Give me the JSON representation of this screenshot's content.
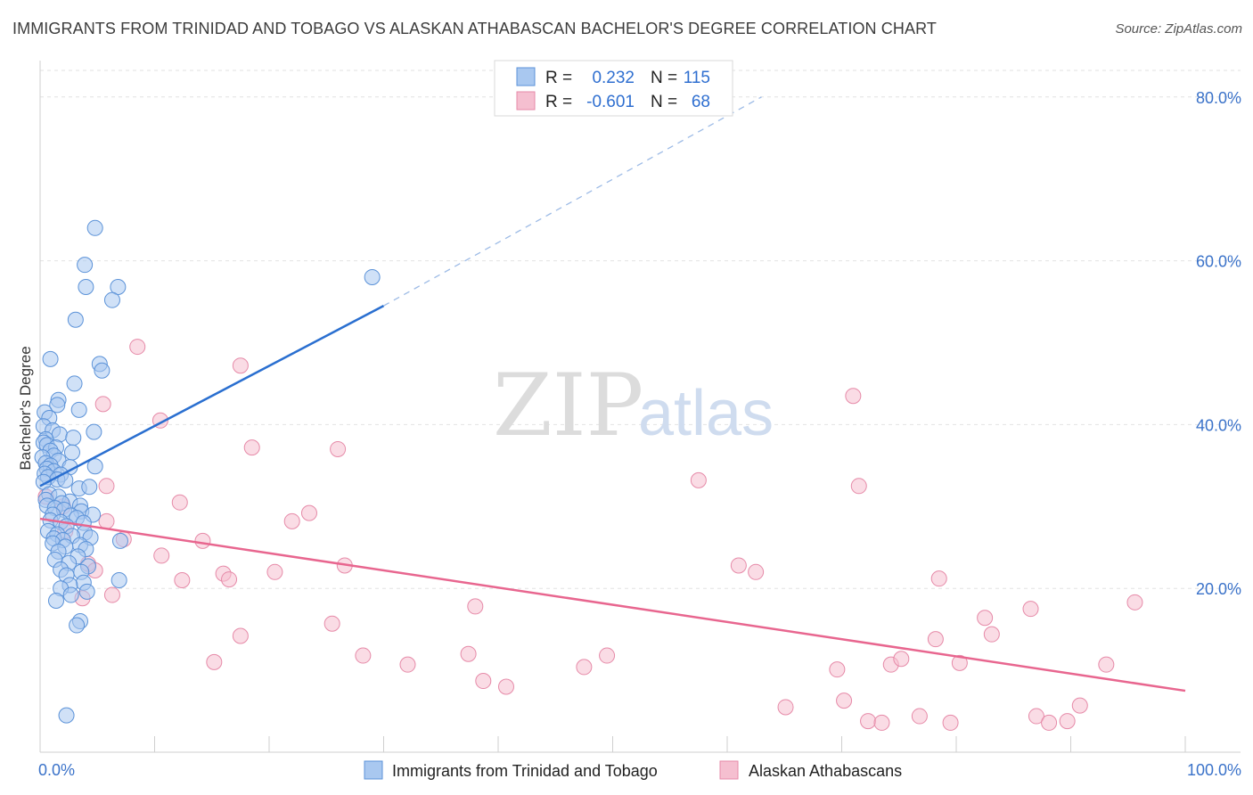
{
  "header": {
    "title": "IMMIGRANTS FROM TRINIDAD AND TOBAGO VS ALASKAN ATHABASCAN BACHELOR'S DEGREE CORRELATION CHART",
    "source": "Source: ZipAtlas.com"
  },
  "watermark": {
    "zip": "ZIP",
    "atlas": "atlas"
  },
  "legend": {
    "r_label": "R =",
    "n_label": "N =",
    "rows": [
      {
        "r": "0.232",
        "n": "115"
      },
      {
        "r": "-0.601",
        "n": "68"
      }
    ]
  },
  "colors": {
    "blue_fill": "#a9c8f0",
    "blue_stroke": "#5b92d8",
    "blue_line": "#2a6fd0",
    "pink_fill": "#f5bfd0",
    "pink_stroke": "#e68aa8",
    "pink_line": "#e8668f",
    "grid": "#e2e2e2",
    "tick_text": "#3a72c9"
  },
  "chart_data": {
    "type": "scatter",
    "title": "IMMIGRANTS FROM TRINIDAD AND TOBAGO VS ALASKAN ATHABASCAN BACHELOR'S DEGREE CORRELATION CHART",
    "xlabel": "",
    "ylabel": "Bachelor's Degree",
    "xlim": [
      0,
      100
    ],
    "ylim": [
      0,
      84
    ],
    "x_tick_labels": [
      "0.0%",
      "100.0%"
    ],
    "y_ticks": [
      20,
      40,
      60,
      80
    ],
    "y_tick_labels": [
      "20.0%",
      "40.0%",
      "60.0%",
      "80.0%"
    ],
    "grid": true,
    "series": [
      {
        "name": "Immigrants from Trinidad and Tobago",
        "r": 0.232,
        "n": 115,
        "trend": {
          "x0": 0,
          "y0": 32.5,
          "x1": 30,
          "y1": 54.5,
          "dash_to_x": 63,
          "dash_to_y": 80
        },
        "points": [
          [
            4.8,
            64
          ],
          [
            3.9,
            59.5
          ],
          [
            4.0,
            56.8
          ],
          [
            6.8,
            56.8
          ],
          [
            6.3,
            55.2
          ],
          [
            3.1,
            52.8
          ],
          [
            29,
            58
          ],
          [
            0.9,
            48
          ],
          [
            5.2,
            47.4
          ],
          [
            5.4,
            46.6
          ],
          [
            3.0,
            45
          ],
          [
            1.6,
            43
          ],
          [
            1.5,
            42.4
          ],
          [
            3.4,
            41.8
          ],
          [
            0.4,
            41.5
          ],
          [
            0.8,
            40.8
          ],
          [
            0.3,
            39.8
          ],
          [
            1.1,
            39.3
          ],
          [
            4.7,
            39.1
          ],
          [
            1.7,
            38.8
          ],
          [
            2.9,
            38.4
          ],
          [
            0.5,
            38.2
          ],
          [
            0.3,
            37.8
          ],
          [
            0.6,
            37.5
          ],
          [
            1.4,
            37.2
          ],
          [
            0.9,
            36.8
          ],
          [
            2.8,
            36.6
          ],
          [
            1.2,
            36.2
          ],
          [
            0.2,
            36.0
          ],
          [
            1.6,
            35.6
          ],
          [
            0.5,
            35.3
          ],
          [
            0.9,
            35.0
          ],
          [
            2.6,
            34.8
          ],
          [
            4.8,
            34.9
          ],
          [
            0.6,
            34.6
          ],
          [
            1.2,
            34.3
          ],
          [
            0.4,
            34.0
          ],
          [
            1.8,
            33.9
          ],
          [
            0.7,
            33.6
          ],
          [
            1.5,
            33.3
          ],
          [
            2.2,
            33.2
          ],
          [
            0.3,
            33.0
          ],
          [
            3.4,
            32.2
          ],
          [
            4.3,
            32.4
          ],
          [
            0.8,
            31.5
          ],
          [
            1.6,
            31.2
          ],
          [
            0.5,
            30.8
          ],
          [
            2.6,
            30.6
          ],
          [
            3.5,
            30.1
          ],
          [
            1.9,
            30.4
          ],
          [
            0.6,
            30.1
          ],
          [
            1.3,
            29.8
          ],
          [
            2.1,
            29.6
          ],
          [
            3.6,
            29.4
          ],
          [
            1.1,
            29.0
          ],
          [
            2.7,
            28.9
          ],
          [
            4.6,
            29.0
          ],
          [
            3.2,
            28.6
          ],
          [
            0.9,
            28.3
          ],
          [
            1.8,
            28.1
          ],
          [
            3.8,
            28.0
          ],
          [
            2.3,
            27.6
          ],
          [
            0.7,
            27.0
          ],
          [
            1.5,
            26.6
          ],
          [
            3.9,
            26.8
          ],
          [
            2.8,
            26.4
          ],
          [
            1.2,
            26.1
          ],
          [
            4.4,
            26.2
          ],
          [
            2.0,
            25.9
          ],
          [
            7.0,
            25.8
          ],
          [
            3.5,
            25.3
          ],
          [
            1.1,
            25.5
          ],
          [
            2.2,
            25.1
          ],
          [
            4.0,
            24.8
          ],
          [
            1.6,
            24.5
          ],
          [
            3.3,
            23.9
          ],
          [
            1.3,
            23.5
          ],
          [
            2.5,
            23.1
          ],
          [
            4.2,
            22.7
          ],
          [
            1.8,
            22.3
          ],
          [
            3.6,
            22.0
          ],
          [
            2.3,
            21.6
          ],
          [
            6.9,
            21.0
          ],
          [
            3.8,
            20.7
          ],
          [
            2.6,
            20.4
          ],
          [
            1.8,
            20.0
          ],
          [
            4.1,
            19.6
          ],
          [
            2.7,
            19.2
          ],
          [
            1.4,
            18.5
          ],
          [
            3.5,
            16.0
          ],
          [
            3.2,
            15.5
          ],
          [
            2.3,
            4.5
          ]
        ]
      },
      {
        "name": "Alaskan Athabascans",
        "r": -0.601,
        "n": 68,
        "trend": {
          "x0": 0,
          "y0": 28.5,
          "x1": 100,
          "y1": 7.5
        },
        "points": [
          [
            8.5,
            49.5
          ],
          [
            17.5,
            47.2
          ],
          [
            5.5,
            42.5
          ],
          [
            10.5,
            40.5
          ],
          [
            18.5,
            37.2
          ],
          [
            26,
            37.0
          ],
          [
            71,
            43.5
          ],
          [
            5.8,
            32.5
          ],
          [
            12.2,
            30.5
          ],
          [
            23.5,
            29.2
          ],
          [
            22,
            28.2
          ],
          [
            5.8,
            28.2
          ],
          [
            0.5,
            31.2
          ],
          [
            2.0,
            30.0
          ],
          [
            7.3,
            26.0
          ],
          [
            10.6,
            24.0
          ],
          [
            14.2,
            25.8
          ],
          [
            16.0,
            21.8
          ],
          [
            20.5,
            22.0
          ],
          [
            26.6,
            22.8
          ],
          [
            12.4,
            21.0
          ],
          [
            16.5,
            21.1
          ],
          [
            6.3,
            19.2
          ],
          [
            3.7,
            18.8
          ],
          [
            4.2,
            23.0
          ],
          [
            4.8,
            22.2
          ],
          [
            2.2,
            27.0
          ],
          [
            57.5,
            33.2
          ],
          [
            71.5,
            32.5
          ],
          [
            61,
            22.8
          ],
          [
            62.5,
            22.0
          ],
          [
            78.5,
            21.2
          ],
          [
            38,
            17.8
          ],
          [
            25.5,
            15.7
          ],
          [
            17.5,
            14.2
          ],
          [
            15.2,
            11.0
          ],
          [
            28.2,
            11.8
          ],
          [
            32.1,
            10.7
          ],
          [
            37.4,
            12.0
          ],
          [
            49.5,
            11.8
          ],
          [
            47.5,
            10.4
          ],
          [
            38.7,
            8.7
          ],
          [
            40.7,
            8.0
          ],
          [
            74.3,
            10.7
          ],
          [
            75.2,
            11.4
          ],
          [
            69.6,
            10.1
          ],
          [
            78.2,
            13.8
          ],
          [
            82.5,
            16.4
          ],
          [
            83.1,
            14.4
          ],
          [
            86.5,
            17.5
          ],
          [
            93.1,
            10.7
          ],
          [
            95.6,
            18.3
          ],
          [
            80.3,
            10.9
          ],
          [
            70.2,
            6.3
          ],
          [
            65.1,
            5.5
          ],
          [
            72.3,
            3.8
          ],
          [
            73.5,
            3.6
          ],
          [
            76.8,
            4.4
          ],
          [
            79.5,
            3.6
          ],
          [
            87,
            4.4
          ],
          [
            88.1,
            3.6
          ],
          [
            89.7,
            3.8
          ],
          [
            90.8,
            5.7
          ]
        ]
      }
    ]
  },
  "bottom_legend": {
    "items": [
      "Immigrants from Trinidad and Tobago",
      "Alaskan Athabascans"
    ]
  }
}
